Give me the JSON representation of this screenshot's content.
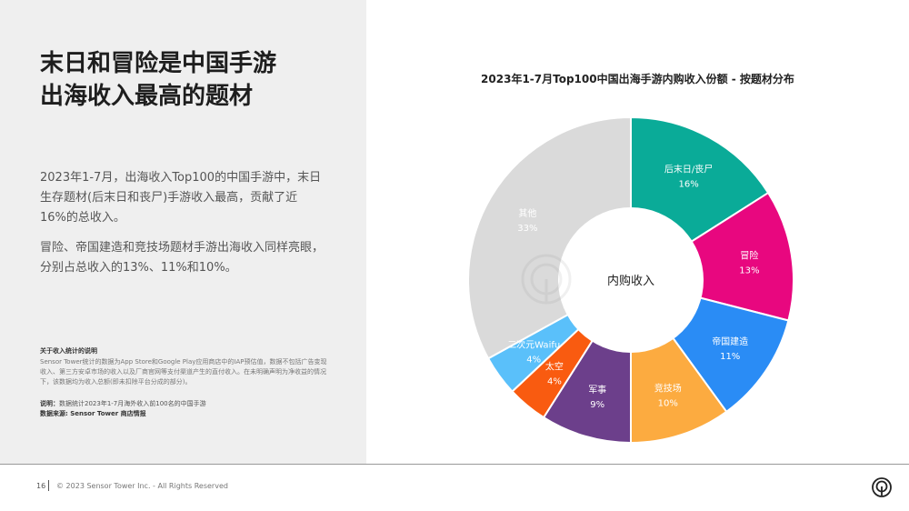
{
  "headline": {
    "line1": "末日和冒险是中国手游",
    "line2": "出海收入最高的题材"
  },
  "body": {
    "p1": "2023年1-7月，出海收入Top100的中国手游中，末日生存题材(后末日和丧尸)手游收入最高，贡献了近16%的总收入。",
    "p2": "冒险、帝国建造和竞技场题材手游出海收入同样亮眼，分别占总收入的13%、11%和10%。"
  },
  "note": {
    "title": "关于收入统计的说明",
    "body": "Sensor Tower统计的数据为App Store和Google Play应用商店中的IAP预估值，数据不包括广告变现收入、第三方安卓市场的收入以及厂商官网等支付渠道产生的直付收入。在未明确声明为净收益的情况下，该数据均为收入总额(即未扣除平台分成的部分)。"
  },
  "footnotes": {
    "desc_label": "说明：",
    "desc_text": "数据统计2023年1-7月海外收入前100名的中国手游",
    "source_label": "数据来源: Sensor Tower 商店情报"
  },
  "footer": {
    "page": "16",
    "copyright": "© 2023 Sensor Tower Inc. - All Rights Reserved"
  },
  "chart_data": {
    "type": "pie",
    "title": "2023年1-7月Top100中国出海手游内购收入份额 - 按题材分布",
    "center_label": "内购收入",
    "categories": [
      "后末日/丧尸",
      "冒险",
      "帝国建造",
      "竞技场",
      "军事",
      "太空",
      "二次元Waifu",
      "其他"
    ],
    "values": [
      16,
      13,
      11,
      10,
      9,
      4,
      4,
      33
    ],
    "value_labels": [
      "16%",
      "13%",
      "11%",
      "10%",
      "9%",
      "4%",
      "4%",
      "33%"
    ],
    "colors": [
      "#0aab98",
      "#e8077f",
      "#2a8cf5",
      "#fcab40",
      "#6c3f8b",
      "#f95b10",
      "#5ac0fa",
      "#dadada"
    ]
  }
}
